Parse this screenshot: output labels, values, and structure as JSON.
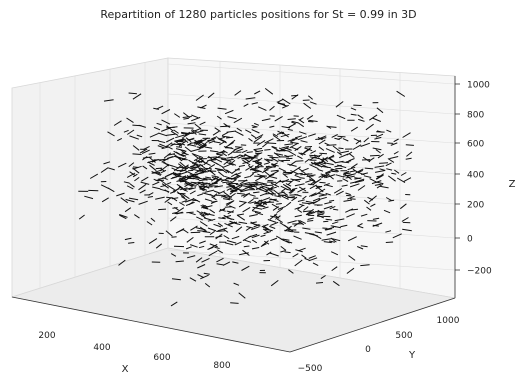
{
  "chart_data": {
    "type": "scatter",
    "title": "Repartition of 1280 particles positions for St = 0.99 in 3D",
    "xlabel": "X",
    "ylabel": "Y",
    "zlabel": "Z",
    "x_ticks": [
      200,
      400,
      600,
      800
    ],
    "y_ticks": [
      -500,
      0,
      500,
      1000
    ],
    "z_ticks": [
      -200,
      0,
      200,
      400,
      600,
      800,
      1000
    ],
    "xlim": [
      100,
      1000
    ],
    "ylim": [
      -600,
      1200
    ],
    "zlim": [
      -350,
      1050
    ],
    "grid": true,
    "marker": "short dash"
  }
}
